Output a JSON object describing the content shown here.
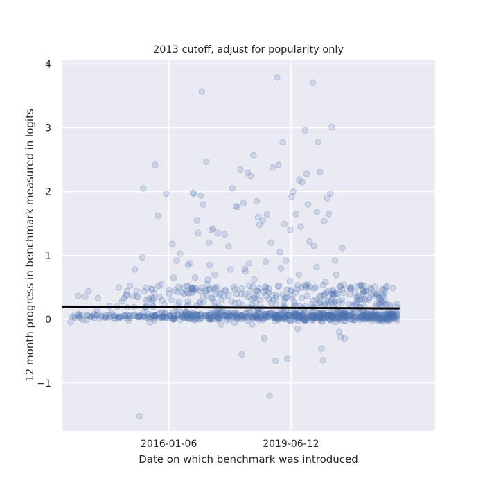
{
  "chart_data": {
    "type": "scatter",
    "title": "2013 cutoff, adjust for popularity only",
    "xlabel": "Date on which benchmark was introduced",
    "ylabel": "12 month progress in benchmark measured in logits",
    "x_axis": {
      "kind": "date",
      "range": [
        "2013-01-01",
        "2023-07-01"
      ],
      "ticks": [
        "2016-01-06",
        "2019-06-12"
      ]
    },
    "y_axis": {
      "range": [
        -1.75,
        4.07
      ],
      "ticks": [
        -1,
        0,
        1,
        2,
        3,
        4
      ],
      "tick_labels": [
        "−1",
        "0",
        "1",
        "2",
        "3",
        "4"
      ]
    },
    "grid": true,
    "background": "#eaeaf2",
    "point_color": "#4c72b0",
    "line_color": "#000000",
    "trend_line": {
      "x": [
        "2013-01-01",
        "2022-07-01"
      ],
      "y": [
        0.2,
        0.17
      ]
    },
    "points": [
      [
        "2013-05-03",
        0.05
      ],
      [
        "2013-06-15",
        0.06
      ],
      [
        "2013-07-10",
        0.02
      ],
      [
        "2013-08-01",
        0.07
      ],
      [
        "2013-09-12",
        -0.01
      ],
      [
        "2013-10-20",
        0.04
      ],
      [
        "2013-11-30",
        0.08
      ],
      [
        "2014-01-10",
        0.33
      ],
      [
        "2014-02-14",
        0.05
      ],
      [
        "2014-03-20",
        0.03
      ],
      [
        "2014-04-25",
        0.06
      ],
      [
        "2014-05-30",
        0.1
      ],
      [
        "2014-06-30",
        0.05
      ],
      [
        "2014-07-25",
        0.2
      ],
      [
        "2014-08-20",
        0.04
      ],
      [
        "2014-09-15",
        0.28
      ],
      [
        "2014-10-10",
        0.06
      ],
      [
        "2014-11-05",
        0.05
      ],
      [
        "2014-12-01",
        0.02
      ],
      [
        "2015-01-01",
        0.06
      ],
      [
        "2015-01-20",
        0.78
      ],
      [
        "2015-02-10",
        0.45
      ],
      [
        "2015-02-28",
        0.05
      ],
      [
        "2015-03-10",
        -1.52
      ],
      [
        "2015-03-25",
        0.06
      ],
      [
        "2015-04-10",
        0.97
      ],
      [
        "2015-04-20",
        2.05
      ],
      [
        "2015-05-01",
        0.04
      ],
      [
        "2015-05-20",
        0.3
      ],
      [
        "2015-06-10",
        0.08
      ],
      [
        "2015-06-25",
        -0.05
      ],
      [
        "2015-07-15",
        0.47
      ],
      [
        "2015-08-01",
        0.05
      ],
      [
        "2015-08-10",
        0.42
      ],
      [
        "2015-08-20",
        2.42
      ],
      [
        "2015-09-01",
        0.06
      ],
      [
        "2015-09-15",
        1.62
      ],
      [
        "2015-10-01",
        0.35
      ],
      [
        "2015-10-20",
        0.55
      ],
      [
        "2015-11-05",
        0.04
      ],
      [
        "2015-11-25",
        0.09
      ],
      [
        "2015-12-10",
        1.97
      ],
      [
        "2015-12-25",
        0.02
      ],
      [
        "2016-01-10",
        0.06
      ],
      [
        "2016-02-10",
        1.18
      ],
      [
        "2016-02-25",
        0.65
      ],
      [
        "2016-03-10",
        0.03
      ],
      [
        "2016-03-25",
        0.92
      ],
      [
        "2016-04-10",
        0.07
      ],
      [
        "2016-05-01",
        1.03
      ],
      [
        "2016-05-20",
        0.42
      ],
      [
        "2016-06-10",
        0.05
      ],
      [
        "2016-07-01",
        0.1
      ],
      [
        "2016-07-20",
        0.85
      ],
      [
        "2016-08-10",
        0.88
      ],
      [
        "2016-08-25",
        0.04
      ],
      [
        "2016-09-10",
        1.98
      ],
      [
        "2016-09-20",
        1.97
      ],
      [
        "2016-10-05",
        0.07
      ],
      [
        "2016-10-20",
        1.55
      ],
      [
        "2016-11-01",
        1.35
      ],
      [
        "2016-11-20",
        0.06
      ],
      [
        "2016-12-01",
        1.94
      ],
      [
        "2016-12-10",
        3.57
      ],
      [
        "2016-12-25",
        1.8
      ],
      [
        "2017-01-10",
        0.05
      ],
      [
        "2017-01-25",
        2.47
      ],
      [
        "2017-02-10",
        0.62
      ],
      [
        "2017-02-20",
        1.2
      ],
      [
        "2017-03-05",
        0.03
      ],
      [
        "2017-03-20",
        1.4
      ],
      [
        "2017-04-05",
        1.42
      ],
      [
        "2017-04-20",
        0.7
      ],
      [
        "2017-05-10",
        0.06
      ],
      [
        "2017-05-25",
        1.35
      ],
      [
        "2017-06-10",
        0.4
      ],
      [
        "2017-06-25",
        -0.08
      ],
      [
        "2017-07-10",
        0.12
      ],
      [
        "2017-08-01",
        1.33
      ],
      [
        "2017-08-20",
        0.05
      ],
      [
        "2017-09-10",
        1.14
      ],
      [
        "2017-10-01",
        0.78
      ],
      [
        "2017-10-20",
        2.05
      ],
      [
        "2017-11-10",
        -0.05
      ],
      [
        "2017-11-25",
        1.77
      ],
      [
        "2017-12-10",
        1.76
      ],
      [
        "2017-12-25",
        0.07
      ],
      [
        "2018-01-10",
        2.35
      ],
      [
        "2018-01-25",
        -0.55
      ],
      [
        "2018-02-10",
        1.82
      ],
      [
        "2018-02-25",
        0.79
      ],
      [
        "2018-03-10",
        0.04
      ],
      [
        "2018-03-25",
        2.3
      ],
      [
        "2018-04-10",
        0.88
      ],
      [
        "2018-04-25",
        2.25
      ],
      [
        "2018-05-10",
        -0.08
      ],
      [
        "2018-05-25",
        2.57
      ],
      [
        "2018-06-10",
        0.06
      ],
      [
        "2018-06-25",
        1.85
      ],
      [
        "2018-07-10",
        1.6
      ],
      [
        "2018-07-25",
        1.48
      ],
      [
        "2018-08-10",
        0.05
      ],
      [
        "2018-08-25",
        1.55
      ],
      [
        "2018-09-10",
        -0.3
      ],
      [
        "2018-09-25",
        0.9
      ],
      [
        "2018-10-10",
        1.64
      ],
      [
        "2018-10-25",
        0.08
      ],
      [
        "2018-11-05",
        -1.2
      ],
      [
        "2018-11-20",
        1.2
      ],
      [
        "2018-12-05",
        2.38
      ],
      [
        "2018-12-20",
        0.04
      ],
      [
        "2019-01-05",
        -0.65
      ],
      [
        "2019-01-20",
        3.79
      ],
      [
        "2019-02-05",
        2.42
      ],
      [
        "2019-02-20",
        1.05
      ],
      [
        "2019-03-05",
        0.06
      ],
      [
        "2019-03-20",
        2.77
      ],
      [
        "2019-04-05",
        1.49
      ],
      [
        "2019-04-20",
        0.92
      ],
      [
        "2019-05-05",
        -0.62
      ],
      [
        "2019-05-20",
        0.07
      ],
      [
        "2019-06-05",
        1.4
      ],
      [
        "2019-06-20",
        1.92
      ],
      [
        "2019-07-05",
        2.0
      ],
      [
        "2019-07-20",
        0.05
      ],
      [
        "2019-08-05",
        1.65
      ],
      [
        "2019-08-20",
        -0.15
      ],
      [
        "2019-09-05",
        2.18
      ],
      [
        "2019-09-20",
        1.45
      ],
      [
        "2019-10-05",
        2.15
      ],
      [
        "2019-10-20",
        0.06
      ],
      [
        "2019-11-05",
        2.96
      ],
      [
        "2019-11-20",
        2.28
      ],
      [
        "2019-12-05",
        1.8
      ],
      [
        "2019-12-20",
        1.22
      ],
      [
        "2020-01-05",
        0.04
      ],
      [
        "2020-01-20",
        3.71
      ],
      [
        "2020-02-05",
        1.15
      ],
      [
        "2020-02-20",
        0.5
      ],
      [
        "2020-03-05",
        1.68
      ],
      [
        "2020-03-20",
        2.78
      ],
      [
        "2020-04-05",
        2.31
      ],
      [
        "2020-04-20",
        -0.46
      ],
      [
        "2020-05-05",
        -0.64
      ],
      [
        "2020-05-20",
        1.54
      ],
      [
        "2020-06-05",
        0.06
      ],
      [
        "2020-06-20",
        1.9
      ],
      [
        "2020-07-05",
        1.65
      ],
      [
        "2020-07-20",
        1.97
      ],
      [
        "2020-08-05",
        3.01
      ],
      [
        "2020-08-20",
        0.05
      ],
      [
        "2020-09-05",
        0.92
      ],
      [
        "2020-09-20",
        0.7
      ],
      [
        "2020-10-05",
        0.12
      ],
      [
        "2020-10-20",
        -0.2
      ],
      [
        "2020-11-05",
        -0.28
      ],
      [
        "2020-11-20",
        1.12
      ],
      [
        "2020-12-05",
        0.04
      ],
      [
        "2020-12-15",
        -0.3
      ],
      [
        "2020-12-25",
        0.02
      ],
      [
        "2016-02-01",
        0.3
      ],
      [
        "2016-04-01",
        0.22
      ],
      [
        "2016-06-01",
        0.5
      ],
      [
        "2016-09-01",
        0.48
      ],
      [
        "2016-11-15",
        0.25
      ],
      [
        "2017-02-01",
        0.55
      ],
      [
        "2017-04-01",
        0.32
      ],
      [
        "2017-06-01",
        0.2
      ],
      [
        "2017-08-10",
        0.45
      ],
      [
        "2017-10-10",
        0.28
      ],
      [
        "2017-12-01",
        0.4
      ],
      [
        "2018-02-01",
        0.22
      ],
      [
        "2018-04-01",
        0.35
      ],
      [
        "2018-06-01",
        0.62
      ],
      [
        "2018-08-01",
        0.3
      ],
      [
        "2018-10-01",
        0.45
      ],
      [
        "2018-12-01",
        0.38
      ],
      [
        "2019-02-01",
        0.52
      ],
      [
        "2019-04-01",
        0.28
      ],
      [
        "2019-06-01",
        0.6
      ],
      [
        "2019-08-01",
        0.42
      ],
      [
        "2019-10-01",
        0.33
      ],
      [
        "2019-12-01",
        0.55
      ],
      [
        "2020-02-01",
        0.48
      ],
      [
        "2020-04-01",
        0.36
      ],
      [
        "2020-06-01",
        0.58
      ],
      [
        "2020-08-01",
        0.3
      ],
      [
        "2020-10-01",
        0.4
      ],
      [
        "2020-11-15",
        0.25
      ],
      [
        "2017-03-01",
        0.85
      ],
      [
        "2018-03-01",
        0.75
      ],
      [
        "2019-03-01",
        0.8
      ],
      [
        "2019-09-01",
        0.7
      ],
      [
        "2020-03-01",
        0.82
      ],
      [
        "2016-10-01",
        0.65
      ]
    ],
    "dense_band": {
      "x_range": [
        "2013-02-01",
        "2022-06-15"
      ],
      "count": 900,
      "y_center": 0.04,
      "y_spread": 0.06
    }
  }
}
